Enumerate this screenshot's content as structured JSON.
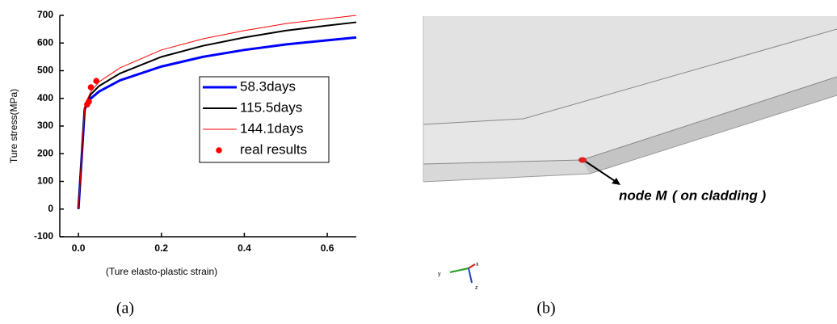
{
  "chart_data": {
    "type": "line",
    "x_label": "(Ture elasto-plastic strain)",
    "y_label": "Ture stress(MPa)",
    "xlim": [
      -0.045,
      0.67
    ],
    "ylim": [
      -100,
      700
    ],
    "xticks": [
      {
        "value": 0,
        "label": "0.0"
      },
      0.2,
      0.4,
      0.6
    ],
    "yticks": [
      -100,
      0,
      100,
      200,
      300,
      400,
      500,
      600,
      700
    ],
    "legend": "center-right",
    "series": [
      {
        "name": "58.3days",
        "color": "#0000ff",
        "width": 3,
        "x": [
          0,
          0.015,
          0.02,
          0.03,
          0.05,
          0.1,
          0.2,
          0.3,
          0.4,
          0.5,
          0.6,
          0.67
        ],
        "values": [
          0,
          360,
          378,
          400,
          425,
          465,
          515,
          550,
          575,
          595,
          610,
          620
        ]
      },
      {
        "name": "115.5days",
        "color": "#000000",
        "width": 2,
        "x": [
          0,
          0.015,
          0.02,
          0.03,
          0.05,
          0.1,
          0.2,
          0.3,
          0.4,
          0.5,
          0.6,
          0.67
        ],
        "values": [
          0,
          365,
          385,
          415,
          445,
          490,
          550,
          590,
          620,
          645,
          663,
          675
        ]
      },
      {
        "name": "144.1days",
        "color": "#ff0000",
        "width": 1,
        "x": [
          0,
          0.015,
          0.02,
          0.03,
          0.05,
          0.1,
          0.2,
          0.3,
          0.4,
          0.5,
          0.6,
          0.67
        ],
        "values": [
          0,
          370,
          392,
          425,
          460,
          510,
          575,
          615,
          645,
          670,
          688,
          700
        ]
      },
      {
        "name": "real results",
        "color": "#ff0000",
        "kind": "scatter",
        "x": [
          0.021,
          0.025,
          0.03,
          0.043
        ],
        "values": [
          378,
          388,
          440,
          463
        ]
      }
    ]
  },
  "panel_b": {
    "label": "node M",
    "note": "( on cladding )",
    "axes": [
      "y",
      "x",
      "z"
    ]
  },
  "captions": [
    "(a)",
    "(b)"
  ]
}
